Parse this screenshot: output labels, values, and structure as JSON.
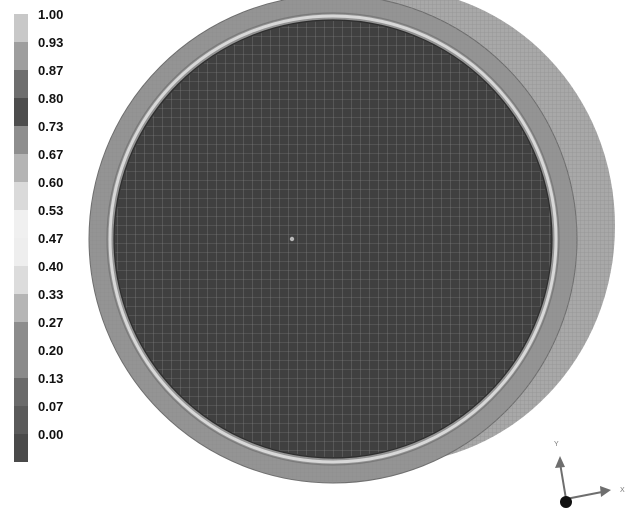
{
  "legend": {
    "entries": [
      {
        "label": "1.00",
        "color": "#c8c8c8"
      },
      {
        "label": "0.93",
        "color": "#9e9e9e"
      },
      {
        "label": "0.87",
        "color": "#6e6e6e"
      },
      {
        "label": "0.80",
        "color": "#4d4d4d"
      },
      {
        "label": "0.73",
        "color": "#8e8e8e"
      },
      {
        "label": "0.67",
        "color": "#b4b4b4"
      },
      {
        "label": "0.60",
        "color": "#dadada"
      },
      {
        "label": "0.53",
        "color": "#f0f0f0"
      },
      {
        "label": "0.47",
        "color": "#eeeeee"
      },
      {
        "label": "0.40",
        "color": "#dcdcdc"
      },
      {
        "label": "0.33",
        "color": "#b5b5b5"
      },
      {
        "label": "0.27",
        "color": "#8c8c8c"
      },
      {
        "label": "0.20",
        "color": "#8a8a8a"
      },
      {
        "label": "0.13",
        "color": "#6a6a6a"
      },
      {
        "label": "0.07",
        "color": "#5a5a5a"
      },
      {
        "label": "0.00",
        "color": "#4a4a4a"
      }
    ]
  },
  "model": {
    "face_color": "#404040",
    "mesh_line_color": "#9a9a9a",
    "rim_color": "#8e8e8e",
    "side_color": "#a4a4a4"
  },
  "triad": {
    "y_label": "Y",
    "x_label": "X",
    "axis_color": "#6e6e6e"
  }
}
